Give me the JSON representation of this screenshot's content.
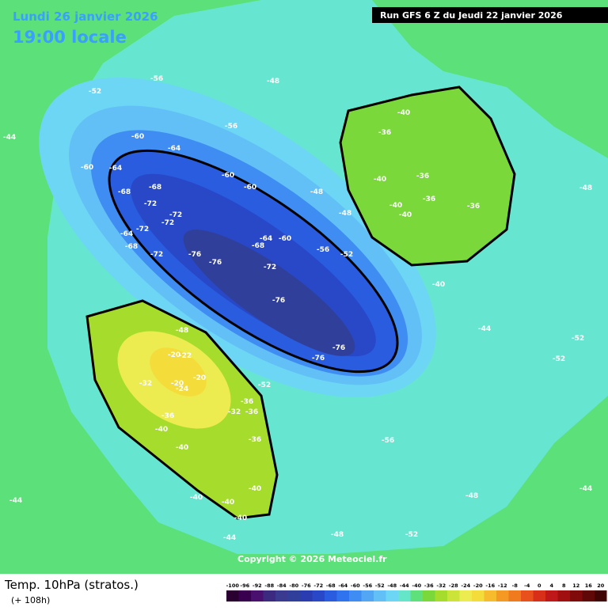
{
  "header": {
    "date": "Lundi 26 janvier 2026",
    "time": "19:00 locale",
    "run": "Run GFS 6 Z du Jeudi 22 janvier 2026"
  },
  "map": {
    "copyright": "Copyright © 2026 Meteociel.fr",
    "contour_labels": [
      -60,
      -64,
      -60,
      -64,
      -68,
      -68,
      -72,
      -72,
      -72,
      -76,
      -76,
      -72,
      -72,
      -64,
      -68,
      -60,
      -60,
      -64,
      -68,
      -60,
      -72,
      -76,
      -76,
      -76,
      -56,
      -56,
      -52,
      -52,
      -56,
      -36,
      -40,
      -40,
      -36,
      -40,
      -40,
      -36,
      -36,
      -40,
      -44,
      -52,
      -52,
      -36,
      -32,
      -36,
      -36,
      -40,
      -40,
      -36,
      -40,
      -40,
      -40,
      -40,
      -20,
      -22,
      -20,
      -24,
      -20,
      -32,
      -48,
      -48,
      -48,
      -48,
      -56,
      -52,
      -48,
      -44,
      -44,
      -44,
      -48,
      -52,
      -48,
      -44
    ]
  },
  "footer": {
    "title": "Temp. 10hPa (stratos.)",
    "lead": "(+ 108h)"
  },
  "scale": {
    "labels": [
      -100,
      -96,
      -92,
      -88,
      -84,
      -80,
      -76,
      -72,
      -68,
      -64,
      -60,
      -56,
      -52,
      -48,
      -44,
      -40,
      -36,
      -32,
      -28,
      -24,
      -20,
      -16,
      -12,
      -8,
      -4,
      0,
      4,
      8,
      12,
      16,
      20
    ],
    "colors": [
      "#2a0030",
      "#3a0050",
      "#4a1070",
      "#3c2a80",
      "#3a3a90",
      "#30409a",
      "#2a3cb0",
      "#2848c8",
      "#2a5ce0",
      "#2f74ee",
      "#3f8cf2",
      "#52a6f4",
      "#62c0f6",
      "#6cd6f4",
      "#66e6c8",
      "#60e07a",
      "#7ad83a",
      "#a6dc2c",
      "#cce43a",
      "#ecec50",
      "#f4dc3a",
      "#f6bc2e",
      "#f49a24",
      "#f07a1e",
      "#e8501c",
      "#d83018",
      "#c01818",
      "#a01010",
      "#800a0a",
      "#600808",
      "#400404"
    ]
  }
}
